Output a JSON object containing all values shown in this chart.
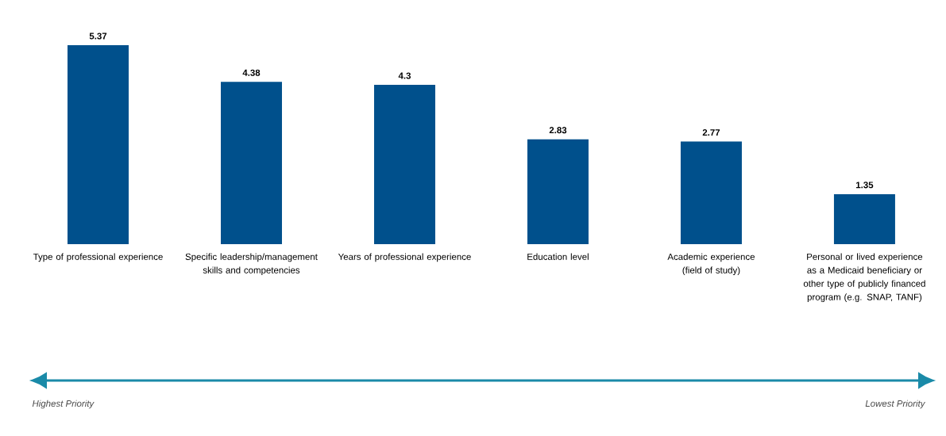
{
  "chart_data": {
    "type": "bar",
    "categories": [
      "Type of professional experience",
      "Specific leadership/management skills and competencies",
      "Years of professional experience",
      "Education level",
      "Academic experience (field of study)",
      "Personal or lived experience as a Medicaid beneficiary or other type of publicly financed program (e.g. SNAP, TANF)"
    ],
    "values": [
      5.37,
      4.38,
      4.3,
      2.83,
      2.77,
      1.35
    ],
    "color": "#00508c",
    "data_labels": true,
    "annotations": [
      "Highest Priority",
      "Lowest Priority"
    ]
  }
}
